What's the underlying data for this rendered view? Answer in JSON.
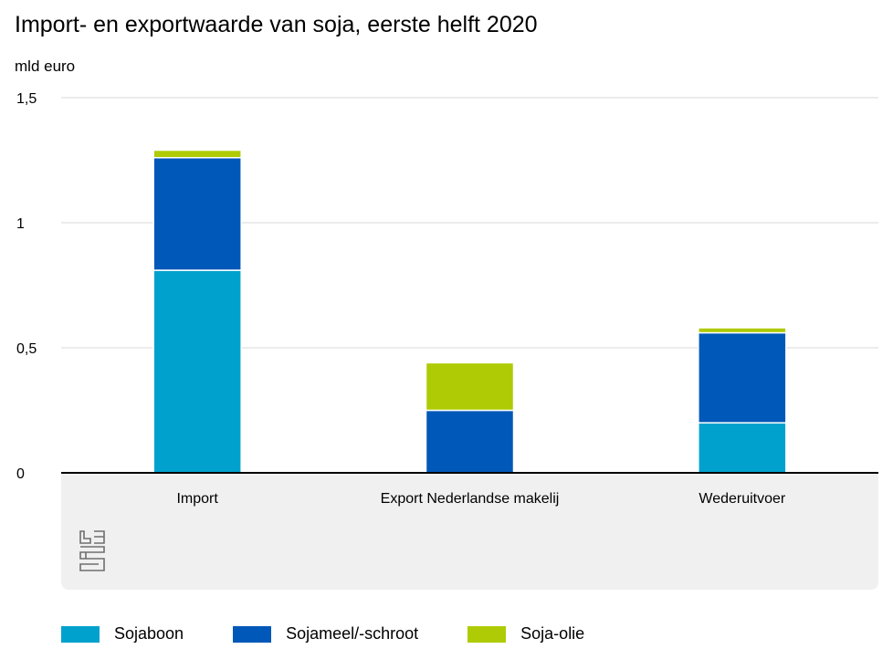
{
  "chart_data": {
    "type": "bar",
    "stacked": true,
    "title": "Import- en exportwaarde van soja, eerste helft 2020",
    "ylabel": "mld euro",
    "ylim": [
      0,
      1.5
    ],
    "yticks": [
      0,
      0.5,
      1,
      1.5
    ],
    "ytick_labels": [
      "0",
      "0,5",
      "1",
      "1,5"
    ],
    "categories": [
      "Import",
      "Export Nederlandse makelij",
      "Wederuitvoer"
    ],
    "series": [
      {
        "name": "Sojaboon",
        "color": "#00a1cd",
        "values": [
          0.81,
          0.0,
          0.2
        ]
      },
      {
        "name": "Sojameel/-schroot",
        "color": "#0058b8",
        "values": [
          0.45,
          0.25,
          0.36
        ]
      },
      {
        "name": "Soja-olie",
        "color": "#afcb05",
        "values": [
          0.03,
          0.19,
          0.02
        ]
      }
    ],
    "grid": true,
    "legend": "bottom"
  },
  "logo": "cbs-logo"
}
